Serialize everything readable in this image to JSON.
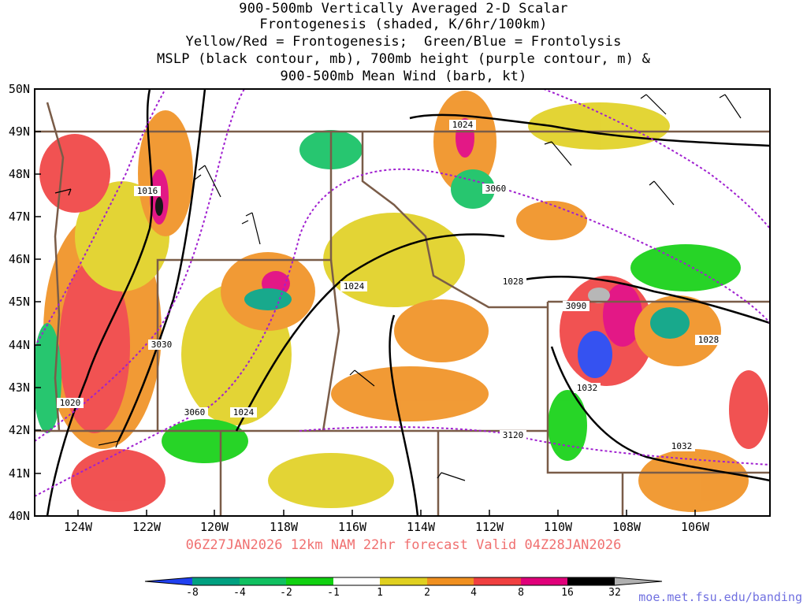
{
  "title": {
    "lines": [
      "900-500mb Vertically Averaged 2-D Scalar",
      "Frontogenesis (shaded, K/6hr/100km)",
      "Yellow/Red = Frontogenesis;  Green/Blue = Frontolysis",
      "MSLP (black contour, mb), 700mb height (purple contour, m) &",
      "900-500mb Mean Wind (barb, kt)"
    ]
  },
  "axes": {
    "lat_labels": [
      "50N",
      "49N",
      "48N",
      "47N",
      "46N",
      "45N",
      "44N",
      "43N",
      "42N",
      "41N",
      "40N"
    ],
    "lon_labels": [
      "124W",
      "122W",
      "120W",
      "118W",
      "116W",
      "114W",
      "112W",
      "110W",
      "108W",
      "106W"
    ]
  },
  "contour_labels": {
    "mslp": [
      "1024",
      "1016",
      "1024",
      "1028",
      "1028",
      "1032",
      "1032",
      "1020",
      "1024"
    ],
    "height": [
      "3060",
      "3090",
      "3030",
      "3060",
      "3120"
    ]
  },
  "forecast": {
    "text": "06Z27JAN2026 12km NAM 22hr forecast Valid 04Z28JAN2026"
  },
  "colorbar": {
    "labels": [
      "-8",
      "-4",
      "-2",
      "-1",
      "1",
      "2",
      "4",
      "8",
      "16",
      "32"
    ],
    "colors": [
      "#2040f0",
      "#00a080",
      "#10c060",
      "#10d010",
      "#ffffff",
      "#e0d020",
      "#f09020",
      "#f04040",
      "#e0007a",
      "#000000",
      "#b0b0b0"
    ]
  },
  "url": "moe.met.fsu.edu/banding",
  "colors": {
    "border": "#7a5c48",
    "mslp": "#000000",
    "height": "#a020d0",
    "title_forecast": "#f07070"
  }
}
